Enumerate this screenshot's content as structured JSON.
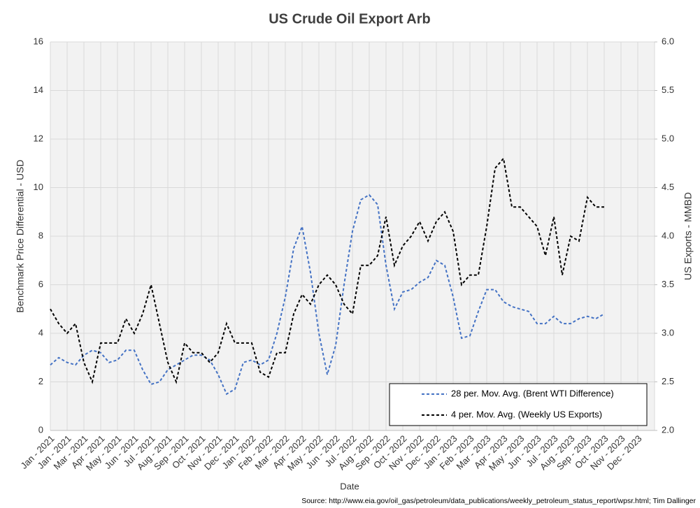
{
  "chart_data": {
    "type": "line",
    "title": "US Crude Oil Export Arb",
    "x_label": "Date",
    "y_label": "Benchmark Price Differential - USD",
    "y2_label": "US Exports - MMBD",
    "source": "Source: http://www.eia.gov/oil_gas/petroleum/data_publications/weekly_petroleum_status_report/wpsr.html; Tim Dallinger",
    "categories": [
      "Jan - 2021",
      null,
      "Jan - 2021",
      null,
      "Mar - 2021",
      null,
      "Apr - 2021",
      null,
      "May - 2021",
      null,
      "Jun - 2021",
      null,
      "Jul - 2021",
      null,
      "Aug - 2021",
      null,
      "Sep - 2021",
      null,
      "Oct - 2021",
      null,
      "Nov - 2021",
      null,
      "Dec - 2021",
      null,
      "Jan - 2022",
      null,
      "Feb - 2022",
      null,
      "Mar - 2022",
      null,
      "Apr - 2022",
      null,
      "May - 2022",
      null,
      "Jun - 2022",
      null,
      "Jul - 2022",
      null,
      "Aug - 2022",
      null,
      "Sep - 2022",
      null,
      "Oct - 2022",
      null,
      "Nov - 2022",
      null,
      "Dec - 2022",
      null,
      "Jan - 2023",
      null,
      "Feb - 2023",
      null,
      "Mar - 2023",
      null,
      "Apr - 2023",
      null,
      "May - 2023",
      null,
      "Jun - 2023",
      null,
      "Jul - 2023",
      null,
      "Aug - 2023",
      null,
      "Sep - 2023",
      null,
      "Oct - 2023",
      null,
      "Nov - 2023",
      null,
      "Dec - 2023",
      null
    ],
    "series": [
      {
        "name": "28 per. Mov. Avg. (Brent WTI Difference)",
        "color": "#4472c4",
        "axis": "y",
        "values": [
          2.7,
          3.0,
          2.8,
          2.7,
          3.1,
          3.3,
          3.2,
          2.8,
          2.9,
          3.3,
          3.3,
          2.5,
          1.9,
          2.0,
          2.5,
          2.7,
          2.9,
          3.1,
          3.1,
          2.9,
          2.3,
          1.5,
          1.7,
          2.8,
          2.9,
          2.7,
          2.9,
          4.0,
          5.5,
          7.5,
          8.4,
          6.5,
          4.0,
          2.3,
          3.5,
          6.0,
          8.2,
          9.5,
          9.7,
          9.3,
          6.8,
          5.0,
          5.7,
          5.8,
          6.1,
          6.3,
          7.0,
          6.8,
          5.5,
          3.8,
          3.9,
          4.9,
          5.8,
          5.8,
          5.3,
          5.1,
          5.0,
          4.9,
          4.4,
          4.4,
          4.7,
          4.4,
          4.4,
          4.6,
          4.7,
          4.6,
          4.8,
          null,
          null,
          null,
          null,
          null
        ]
      },
      {
        "name": "4 per. Mov. Avg. (Weekly US Exports)",
        "color": "#000000",
        "axis": "y2",
        "values": [
          3.25,
          3.1,
          3.0,
          3.1,
          2.7,
          2.5,
          2.9,
          2.9,
          2.9,
          3.15,
          3.0,
          3.2,
          3.5,
          3.1,
          2.7,
          2.5,
          2.9,
          2.8,
          2.8,
          2.7,
          2.8,
          3.1,
          2.9,
          2.9,
          2.9,
          2.6,
          2.55,
          2.8,
          2.8,
          3.2,
          3.4,
          3.3,
          3.5,
          3.6,
          3.5,
          3.3,
          3.2,
          3.7,
          3.7,
          3.8,
          4.2,
          3.7,
          3.9,
          4.0,
          4.15,
          3.95,
          4.15,
          4.25,
          4.05,
          3.5,
          3.6,
          3.6,
          4.1,
          4.7,
          4.8,
          4.3,
          4.3,
          4.2,
          4.1,
          3.8,
          4.2,
          3.6,
          4.0,
          3.95,
          4.4,
          4.3,
          4.3,
          null,
          null,
          null,
          null,
          null
        ]
      }
    ],
    "ylim": [
      0,
      16
    ],
    "yticks": [
      0,
      2,
      4,
      6,
      8,
      10,
      12,
      14,
      16
    ],
    "y2lim": [
      2,
      6
    ],
    "y2ticks": [
      {
        "value": 2,
        "label": "2.0"
      },
      2.5,
      {
        "value": 3,
        "label": "3.0"
      },
      3.5,
      {
        "value": 4,
        "label": "4.0"
      },
      4.5,
      {
        "value": 5,
        "label": "5.0"
      },
      5.5,
      {
        "value": 6,
        "label": "6.0"
      }
    ],
    "grid": true,
    "legend": "lower right",
    "line_style": "dashed"
  }
}
